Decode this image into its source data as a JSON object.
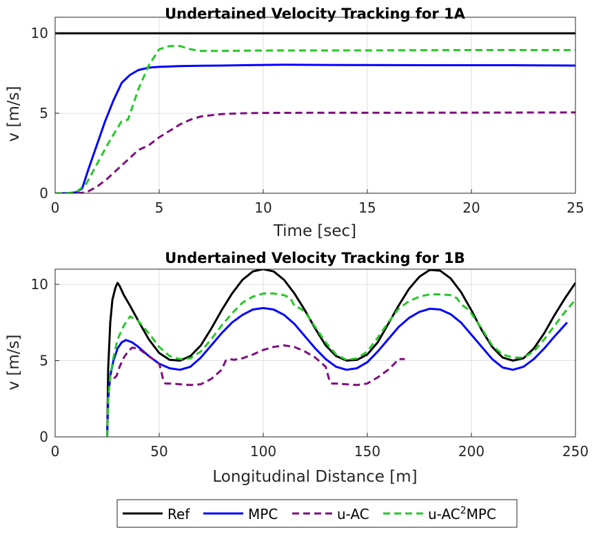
{
  "series_styles": {
    "ref": {
      "color": "#000000",
      "dash": ""
    },
    "mpc": {
      "color": "#0000ff",
      "dash": ""
    },
    "uac": {
      "color": "#7e0e7e",
      "dash": "10,6"
    },
    "uac2mpc": {
      "color": "#25c825",
      "dash": "10,6"
    }
  },
  "legend": {
    "entries": [
      {
        "key": "ref",
        "label": "Ref"
      },
      {
        "key": "mpc",
        "label": "MPC"
      },
      {
        "key": "uac",
        "label": "u-AC"
      },
      {
        "key": "uac2mpc",
        "label_main": "u-AC",
        "label_sup": "2",
        "label_tail": "MPC"
      }
    ]
  },
  "chart_data": [
    {
      "type": "line",
      "title": "Undertained Velocity Tracking for 1A",
      "xlabel": "Time [sec]",
      "ylabel": "v [m/s]",
      "xlim": [
        0,
        25
      ],
      "ylim": [
        0,
        11
      ],
      "xticks": [
        0,
        5,
        10,
        15,
        20,
        25
      ],
      "yticks": [
        0,
        5,
        10
      ],
      "grid": true,
      "series": [
        {
          "key": "ref",
          "name": "Ref",
          "x": [
            0,
            25
          ],
          "y": [
            10,
            10
          ]
        },
        {
          "key": "mpc",
          "name": "MPC",
          "x": [
            0,
            0.5,
            1.0,
            1.3,
            1.6,
            2.0,
            2.4,
            2.8,
            3.2,
            3.6,
            4.0,
            4.5,
            5.0,
            6.0,
            7.0,
            8.0,
            9.0,
            10.0,
            11.0,
            13.0,
            15.0,
            18.0,
            20.0,
            22.0,
            25.0
          ],
          "y": [
            0,
            0,
            0.05,
            0.3,
            1.5,
            3.0,
            4.5,
            5.8,
            6.9,
            7.4,
            7.7,
            7.85,
            7.9,
            7.95,
            7.97,
            7.98,
            8.0,
            8.02,
            8.03,
            8.02,
            8.01,
            8.0,
            8.0,
            8.0,
            7.98
          ]
        },
        {
          "key": "uac",
          "name": "u-AC",
          "x": [
            0,
            0.5,
            1.0,
            1.5,
            2.0,
            2.5,
            3.0,
            3.5,
            4.0,
            4.5,
            5.0,
            5.5,
            6.0,
            6.5,
            7.0,
            8.0,
            9.0,
            10.0,
            12.0,
            15.0,
            20.0,
            25.0
          ],
          "y": [
            0,
            0,
            0,
            0.05,
            0.4,
            0.9,
            1.5,
            2.1,
            2.7,
            3.0,
            3.5,
            3.9,
            4.3,
            4.6,
            4.8,
            4.95,
            5.0,
            5.02,
            5.03,
            5.03,
            5.04,
            5.05
          ]
        },
        {
          "key": "uac2mpc",
          "name": "u-AC²MPC",
          "x": [
            0,
            0.5,
            1.0,
            1.5,
            2.0,
            2.5,
            3.0,
            3.2,
            3.5,
            4.0,
            4.5,
            5.0,
            5.5,
            6.0,
            6.5,
            7.0,
            8.0,
            10.0,
            15.0,
            20.0,
            25.0
          ],
          "y": [
            0,
            0,
            0.05,
            0.6,
            1.8,
            3.0,
            4.1,
            4.5,
            4.6,
            6.5,
            8.0,
            9.0,
            9.2,
            9.2,
            9.0,
            8.9,
            8.9,
            8.92,
            8.93,
            8.95,
            8.95
          ]
        }
      ]
    },
    {
      "type": "line",
      "title": "Undertained Velocity Tracking for 1B",
      "xlabel": "Longitudinal Distance [m]",
      "ylabel": "v [m/s]",
      "xlim": [
        0,
        250
      ],
      "ylim": [
        0,
        11
      ],
      "xticks": [
        0,
        50,
        100,
        150,
        200,
        250
      ],
      "yticks": [
        0,
        5,
        10
      ],
      "grid": true,
      "series": [
        {
          "key": "ref",
          "name": "Ref",
          "x": [
            25,
            25.5,
            26.5,
            27.5,
            29,
            30,
            31,
            33,
            36,
            40,
            45,
            50,
            55,
            60,
            65,
            70,
            75,
            80,
            85,
            90,
            95,
            100,
            105,
            110,
            115,
            120,
            125,
            130,
            135,
            140,
            145,
            150,
            155,
            160,
            165,
            170,
            175,
            180,
            185,
            190,
            195,
            200,
            205,
            210,
            215,
            220,
            225,
            230,
            235,
            240,
            245,
            250
          ],
          "y": [
            0,
            4.5,
            7.5,
            9.0,
            9.8,
            10.1,
            9.9,
            9.3,
            8.6,
            7.6,
            6.4,
            5.5,
            5.05,
            5.0,
            5.3,
            6.0,
            7.1,
            8.3,
            9.4,
            10.3,
            10.85,
            11.0,
            10.85,
            10.3,
            9.4,
            8.3,
            7.1,
            6.0,
            5.3,
            5.0,
            5.05,
            5.4,
            6.2,
            7.4,
            8.6,
            9.7,
            10.5,
            10.95,
            10.9,
            10.4,
            9.5,
            8.3,
            7.0,
            5.9,
            5.2,
            5.0,
            5.15,
            5.8,
            6.8,
            8.0,
            9.1,
            10.1
          ]
        },
        {
          "key": "mpc",
          "name": "MPC",
          "x": [
            25,
            25.5,
            26.5,
            28,
            30,
            32,
            34,
            37,
            40,
            45,
            50,
            55,
            60,
            65,
            70,
            75,
            80,
            85,
            90,
            95,
            100,
            105,
            110,
            115,
            120,
            125,
            130,
            135,
            140,
            145,
            150,
            155,
            160,
            165,
            170,
            175,
            180,
            185,
            190,
            195,
            200,
            205,
            210,
            215,
            220,
            225,
            230,
            235,
            240,
            246
          ],
          "y": [
            0,
            2.5,
            4.0,
            5.0,
            5.8,
            6.2,
            6.35,
            6.2,
            5.9,
            5.3,
            4.8,
            4.5,
            4.4,
            4.6,
            5.2,
            6.0,
            6.8,
            7.5,
            8.0,
            8.35,
            8.45,
            8.35,
            8.0,
            7.4,
            6.6,
            5.8,
            5.1,
            4.6,
            4.4,
            4.5,
            4.9,
            5.6,
            6.4,
            7.2,
            7.8,
            8.2,
            8.4,
            8.35,
            8.05,
            7.5,
            6.7,
            5.9,
            5.1,
            4.55,
            4.4,
            4.6,
            5.1,
            5.8,
            6.6,
            7.5
          ]
        },
        {
          "key": "uac",
          "name": "u-AC",
          "x": [
            25,
            25.5,
            26.5,
            28,
            29.5,
            31,
            33,
            35,
            37,
            40,
            45,
            50,
            51,
            52,
            53,
            55,
            60,
            65,
            70,
            75,
            80,
            82,
            84,
            86,
            90,
            95,
            100,
            105,
            110,
            115,
            120,
            125,
            130,
            131,
            132,
            133,
            135,
            140,
            145,
            150,
            155,
            160,
            163,
            165,
            168
          ],
          "y": [
            0,
            2.5,
            4.0,
            3.8,
            4.0,
            4.6,
            5.2,
            5.6,
            5.85,
            5.8,
            5.3,
            4.8,
            4.3,
            3.7,
            3.5,
            3.5,
            3.45,
            3.4,
            3.45,
            3.8,
            4.4,
            5.0,
            5.1,
            5.05,
            5.15,
            5.4,
            5.7,
            5.9,
            6.0,
            5.9,
            5.6,
            5.2,
            4.6,
            4.1,
            3.6,
            3.5,
            3.5,
            3.45,
            3.4,
            3.5,
            3.9,
            4.4,
            4.8,
            5.1,
            5.1
          ]
        },
        {
          "key": "uac2mpc",
          "name": "u-AC²MPC",
          "x": [
            25,
            25.5,
            26.5,
            28,
            30,
            33,
            36,
            40,
            45,
            50,
            55,
            60,
            65,
            70,
            75,
            80,
            85,
            90,
            95,
            100,
            105,
            110,
            113,
            115,
            118,
            120,
            125,
            130,
            135,
            140,
            145,
            150,
            155,
            160,
            165,
            170,
            175,
            180,
            185,
            190,
            193,
            195,
            198,
            200,
            205,
            210,
            215,
            220,
            225,
            230,
            235,
            240,
            245,
            250
          ],
          "y": [
            0,
            2.5,
            4.0,
            5.2,
            6.4,
            7.3,
            7.9,
            7.6,
            6.8,
            5.9,
            5.3,
            5.1,
            5.15,
            5.6,
            6.4,
            7.3,
            8.1,
            8.8,
            9.2,
            9.4,
            9.4,
            9.3,
            9.1,
            8.6,
            8.4,
            8.2,
            7.2,
            6.2,
            5.4,
            5.05,
            5.15,
            5.6,
            6.5,
            7.5,
            8.4,
            8.9,
            9.2,
            9.35,
            9.35,
            9.3,
            9.1,
            8.7,
            8.4,
            8.1,
            7.1,
            6.0,
            5.4,
            5.2,
            5.2,
            5.6,
            6.4,
            7.3,
            8.2,
            9.0
          ]
        }
      ]
    }
  ]
}
